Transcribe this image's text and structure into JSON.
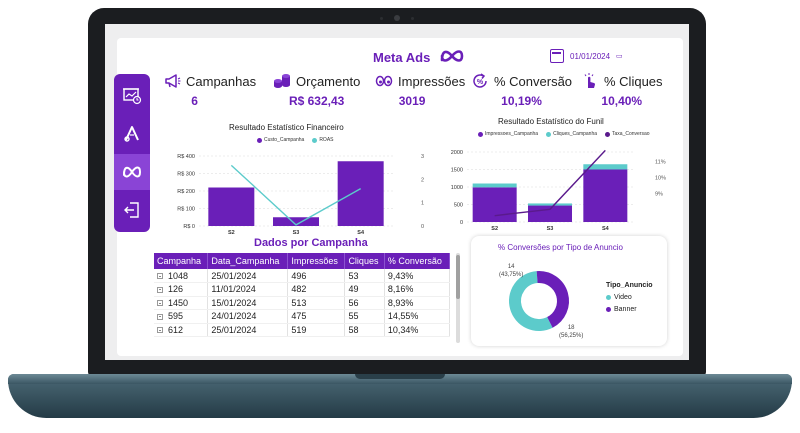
{
  "header": {
    "title": "Meta Ads",
    "date": "01/01/2024"
  },
  "sidebar": {
    "items": [
      {
        "name": "report-icon",
        "active": false
      },
      {
        "name": "google-ads-icon",
        "active": false
      },
      {
        "name": "meta-icon",
        "active": true
      },
      {
        "name": "exit-icon",
        "active": false
      }
    ]
  },
  "kpis": {
    "campanhas": {
      "label": "Campanhas",
      "value": "6"
    },
    "orcamento": {
      "label": "Orçamento",
      "value": "R$ 632,43"
    },
    "impressoes": {
      "label": "Impressões",
      "value": "3019"
    },
    "conversao": {
      "label": "% Conversão",
      "value": "10,19%"
    },
    "cliques": {
      "label": "% Cliques",
      "value": "10,40%"
    }
  },
  "colors": {
    "purple": "#6a1fb8",
    "teal": "#5ccbcb",
    "dark_purple": "#5a1a8c"
  },
  "chart_data": [
    {
      "type": "bar",
      "title": "Resultado Estatístico Financeiro",
      "categories": [
        "S2",
        "S3",
        "S4"
      ],
      "y_ticks": [
        "R$ 400",
        "R$ 300",
        "R$ 200",
        "R$ 100",
        "R$ 0"
      ],
      "y2_ticks": [
        "3",
        "2",
        "1",
        "0"
      ],
      "ylim": [
        0,
        400
      ],
      "y2lim": [
        0,
        3
      ],
      "grid": true,
      "legend_position": "top",
      "series": [
        {
          "name": "Custo_Campanha",
          "type": "bar",
          "values": [
            220,
            50,
            370
          ]
        },
        {
          "name": "ROAS",
          "type": "line",
          "axis": "right",
          "values": [
            2.6,
            0.05,
            1.6
          ]
        }
      ]
    },
    {
      "type": "bar",
      "title": "Resultado Estatístico do Funil",
      "categories": [
        "S2",
        "S3",
        "S4"
      ],
      "y_ticks": [
        "2000",
        "1500",
        "1000",
        "500",
        "0"
      ],
      "y2_ticks": [
        "11%",
        "10%",
        "9%"
      ],
      "ylim": [
        0,
        2000
      ],
      "grid": true,
      "legend_position": "top",
      "series": [
        {
          "name": "Impressoes_Campanha",
          "type": "stacked_bar",
          "values": [
            990,
            470,
            1500
          ]
        },
        {
          "name": "Cliques_Campanha",
          "type": "stacked_bar",
          "values": [
            110,
            60,
            150
          ]
        },
        {
          "name": "Taxa_Conversao",
          "type": "line",
          "axis": "right",
          "values": [
            7.6,
            8.0,
            11.7
          ]
        }
      ]
    },
    {
      "type": "pie",
      "title": "% Conversões por Tipo de Anuncio",
      "legend_title": "Tipo_Anuncio",
      "categories": [
        "Video",
        "Banner"
      ],
      "values": [
        18,
        14
      ],
      "labels": [
        {
          "count": "18",
          "percent": "(56,25%)"
        },
        {
          "count": "14",
          "percent": "(43,75%)"
        }
      ]
    }
  ],
  "table": {
    "title": "Dados por Campanha",
    "columns": [
      "Campanha",
      "Data_Campanha",
      "Impressões",
      "Cliques",
      "% Conversão"
    ],
    "rows": [
      [
        "1048",
        "25/01/2024",
        "496",
        "53",
        "9,43%"
      ],
      [
        "126",
        "11/01/2024",
        "482",
        "49",
        "8,16%"
      ],
      [
        "1450",
        "15/01/2024",
        "513",
        "56",
        "8,93%"
      ],
      [
        "595",
        "24/01/2024",
        "475",
        "55",
        "14,55%"
      ],
      [
        "612",
        "25/01/2024",
        "519",
        "58",
        "10,34%"
      ]
    ]
  }
}
